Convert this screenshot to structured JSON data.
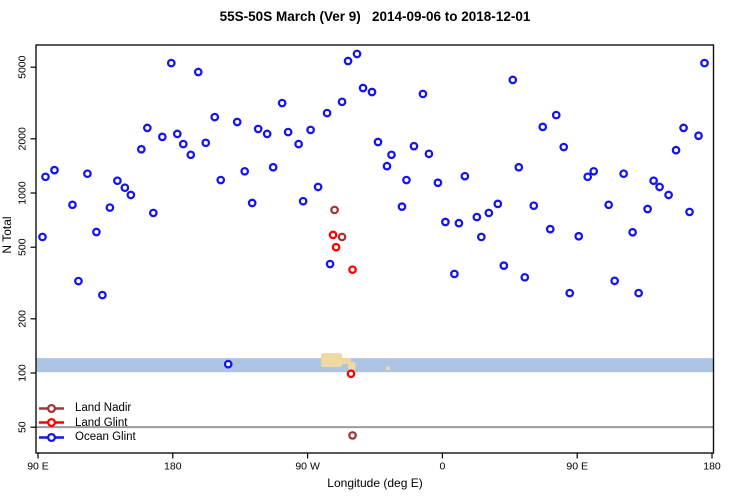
{
  "title": "55S-50S March (Ver 9)   2014-09-06 to 2018-12-01",
  "chart_data": {
    "type": "scatter",
    "title": "55S-50S March (Ver 9)   2014-09-06 to 2018-12-01",
    "xlabel": "Longitude (deg E)",
    "ylabel": "N Total",
    "grid": false,
    "legend_position": "bottom-left-inside",
    "x_axis": {
      "note": "continuous eastward longitude, 90E wrapping through 180, 90W, 0, 90E to 180",
      "range": [
        88,
        541
      ],
      "ticks": [
        {
          "v": 90,
          "label": "90 E"
        },
        {
          "v": 180,
          "label": "180"
        },
        {
          "v": 270,
          "label": "90 W"
        },
        {
          "v": 360,
          "label": "0"
        },
        {
          "v": 450,
          "label": "90 E"
        },
        {
          "v": 540,
          "label": "180"
        }
      ]
    },
    "y_axis": {
      "scale": "log",
      "range": [
        36,
        6600
      ],
      "ticks": [
        {
          "v": 50,
          "label": "50"
        },
        {
          "v": 100,
          "label": "100"
        },
        {
          "v": 200,
          "label": "200"
        },
        {
          "v": 500,
          "label": "500"
        },
        {
          "v": 1000,
          "label": "1000"
        },
        {
          "v": 2000,
          "label": "2000"
        },
        {
          "v": 5000,
          "label": "5000"
        }
      ]
    },
    "reference_line": {
      "n": 50,
      "color": "#9b9b9b"
    },
    "ocean_band": {
      "n_range": [
        101,
        121
      ],
      "color": "#adc4e4",
      "land_color": "#f0d9a0",
      "land_patches": [
        {
          "lon": [
            279,
            293
          ],
          "n": [
            108,
            129
          ]
        },
        {
          "lon": [
            293,
            299
          ],
          "n": [
            112,
            121
          ]
        },
        {
          "lon": [
            297,
            302
          ],
          "n": [
            104,
            115
          ]
        },
        {
          "lon": [
            322,
            325
          ],
          "n": [
            104,
            109
          ]
        }
      ]
    },
    "series": [
      {
        "name": "Land Nadir",
        "color": "#a33535",
        "points": [
          [
            288,
            805
          ],
          [
            293,
            570
          ],
          [
            300,
            45
          ]
        ]
      },
      {
        "name": "Land Glint",
        "color": "#ff0000",
        "points": [
          [
            287,
            585
          ],
          [
            289,
            500
          ],
          [
            300,
            375
          ],
          [
            299,
            99
          ]
        ]
      },
      {
        "name": "Ocean Glint",
        "color": "#1414ee",
        "points": [
          [
            179,
            5270
          ],
          [
            197,
            4700
          ],
          [
            297,
            5410
          ],
          [
            303,
            5920
          ],
          [
            307,
            3830
          ],
          [
            313,
            3640
          ],
          [
            253,
            3160
          ],
          [
            293,
            3210
          ],
          [
            283,
            2780
          ],
          [
            208,
            2640
          ],
          [
            223,
            2480
          ],
          [
            163,
            2300
          ],
          [
            183,
            2130
          ],
          [
            173,
            2050
          ],
          [
            187,
            1870
          ],
          [
            202,
            1900
          ],
          [
            192,
            1630
          ],
          [
            159,
            1750
          ],
          [
            237,
            2270
          ],
          [
            243,
            2130
          ],
          [
            257,
            2180
          ],
          [
            264,
            1870
          ],
          [
            272,
            2240
          ],
          [
            101,
            1340
          ],
          [
            95,
            1230
          ],
          [
            123,
            1280
          ],
          [
            143,
            1170
          ],
          [
            148,
            1070
          ],
          [
            152,
            975
          ],
          [
            212,
            1180
          ],
          [
            228,
            1320
          ],
          [
            247,
            1390
          ],
          [
            407,
            4250
          ],
          [
            347,
            3550
          ],
          [
            535,
            5270
          ],
          [
            436,
            2710
          ],
          [
            427,
            2330
          ],
          [
            441,
            1800
          ],
          [
            317,
            1920
          ],
          [
            326,
            1630
          ],
          [
            323,
            1410
          ],
          [
            341,
            1820
          ],
          [
            351,
            1650
          ],
          [
            521,
            2300
          ],
          [
            531,
            2080
          ],
          [
            516,
            1730
          ],
          [
            411,
            1390
          ],
          [
            457,
            1230
          ],
          [
            461,
            1320
          ],
          [
            481,
            1280
          ],
          [
            501,
            1170
          ],
          [
            375,
            1240
          ],
          [
            357,
            1140
          ],
          [
            336,
            1180
          ],
          [
            113,
            860
          ],
          [
            138,
            830
          ],
          [
            167,
            775
          ],
          [
            129,
            607
          ],
          [
            93,
            570
          ],
          [
            233,
            880
          ],
          [
            267,
            900
          ],
          [
            277,
            1080
          ],
          [
            285,
            403
          ],
          [
            117,
            324
          ],
          [
            133,
            271
          ],
          [
            333,
            840
          ],
          [
            362,
            690
          ],
          [
            371,
            680
          ],
          [
            383,
            735
          ],
          [
            391,
            775
          ],
          [
            397,
            870
          ],
          [
            386,
            570
          ],
          [
            421,
            850
          ],
          [
            432,
            630
          ],
          [
            451,
            575
          ],
          [
            471,
            860
          ],
          [
            487,
            605
          ],
          [
            497,
            815
          ],
          [
            505,
            1080
          ],
          [
            511,
            975
          ],
          [
            525,
            785
          ],
          [
            368,
            355
          ],
          [
            401,
            395
          ],
          [
            415,
            340
          ],
          [
            445,
            278
          ],
          [
            475,
            325
          ],
          [
            491,
            278
          ],
          [
            217,
            112
          ]
        ]
      }
    ]
  },
  "legend": {
    "items": [
      {
        "label": "Land Nadir",
        "color": "#a33535"
      },
      {
        "label": "Land Glint",
        "color": "#ff0000"
      },
      {
        "label": "Ocean Glint",
        "color": "#1414ee"
      }
    ]
  }
}
